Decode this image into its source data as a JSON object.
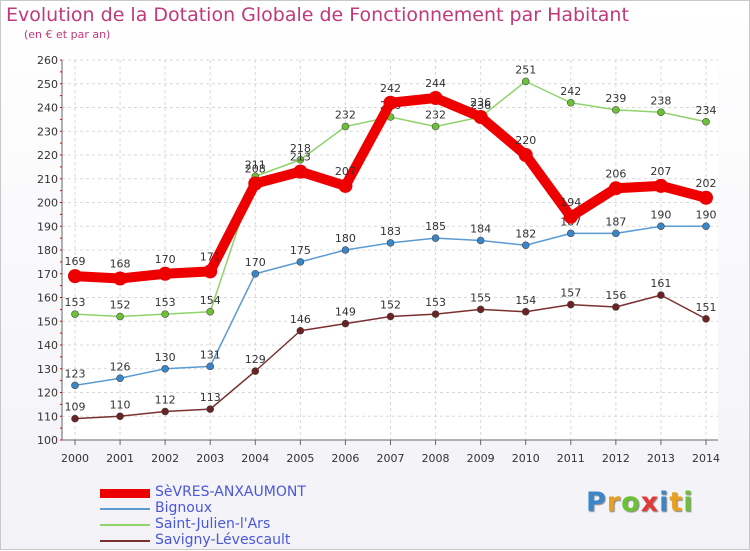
{
  "chart_data": {
    "type": "line",
    "title": "Evolution de la Dotation Globale de Fonctionnement par Habitant",
    "subtitle": "(en € et par an)",
    "xlabel": "",
    "ylabel": "",
    "ylim": [
      100,
      260
    ],
    "yticks": [
      100,
      110,
      120,
      130,
      140,
      150,
      160,
      170,
      180,
      190,
      200,
      210,
      220,
      230,
      240,
      250,
      260
    ],
    "grid": true,
    "legend_position": "bottom-left",
    "x": [
      "2000",
      "2001",
      "2002",
      "2003",
      "2004",
      "2005",
      "2006",
      "2007",
      "2008",
      "2009",
      "2010",
      "2011",
      "2012",
      "2013",
      "2014"
    ],
    "series": [
      {
        "name": "Saint-Julien-l'Ars",
        "color": "#8fd46a",
        "marker": "#6cc234",
        "values": [
          153,
          152,
          153,
          154,
          211,
          218,
          232,
          236,
          232,
          236,
          251,
          242,
          239,
          238,
          234
        ],
        "labels": [
          "153",
          "152",
          "153",
          "154",
          "211",
          "218",
          "232",
          "236",
          "232",
          "236",
          "251",
          "242",
          "239",
          "238",
          "234"
        ]
      },
      {
        "name": "Bignoux",
        "color": "#5b9bd1",
        "marker": "#3a86c8",
        "values": [
          123,
          126,
          130,
          131,
          170,
          175,
          180,
          183,
          185,
          184,
          182,
          187,
          187,
          190,
          190
        ],
        "labels": [
          "123",
          "126",
          "130",
          "131",
          "170",
          "175",
          "180",
          "183",
          "185",
          "184",
          "182",
          "187",
          "187",
          "190",
          "190"
        ]
      },
      {
        "name": "Savigny-Lévescault",
        "color": "#7a3030",
        "marker": "#6b2222",
        "values": [
          109,
          110,
          112,
          113,
          129,
          146,
          149,
          152,
          153,
          155,
          154,
          157,
          156,
          161,
          151
        ],
        "labels": [
          "109",
          "110",
          "112",
          "113",
          "129",
          "146",
          "149",
          "152",
          "153",
          "155",
          "154",
          "157",
          "156",
          "161",
          "151"
        ]
      },
      {
        "name": "SèVRES-ANXAUMONT",
        "color": "#ee0000",
        "marker": "#ee0000",
        "values": [
          169,
          168,
          170,
          171,
          208,
          213,
          207,
          242,
          244,
          236,
          220,
          194,
          206,
          207,
          202
        ],
        "labels": [
          "169",
          "168",
          "170",
          "171",
          "208",
          "213",
          "207",
          "242",
          "244",
          "236",
          "220",
          "194",
          "206",
          "207",
          "202"
        ]
      }
    ],
    "legend": [
      "SèVRES-ANXAUMONT",
      "Bignoux",
      "Saint-Julien-l'Ars",
      "Savigny-Lévescault"
    ]
  },
  "branding": {
    "logo_letters": [
      "P",
      "r",
      "o",
      "x",
      "i",
      "t",
      "i"
    ],
    "logo_colors": [
      "#3a86c8",
      "#e8a020",
      "#6cc234",
      "#e03a3a",
      "#3a86c8",
      "#e8a020",
      "#6cc234"
    ]
  }
}
